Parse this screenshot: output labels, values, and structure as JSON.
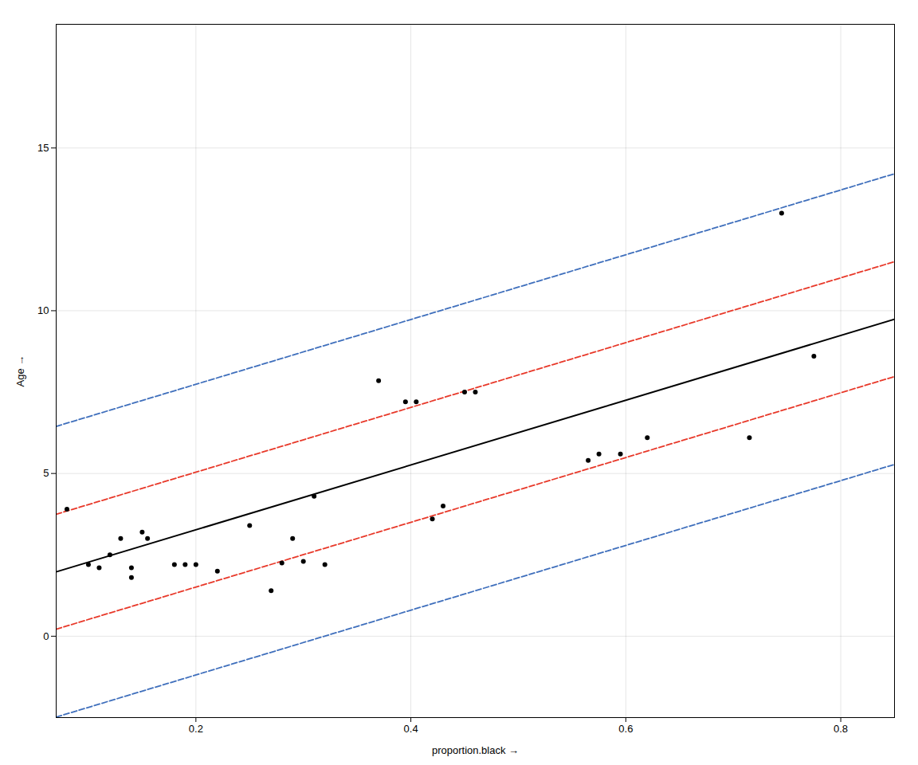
{
  "chart_data": {
    "type": "scatter",
    "xlabel": "proportion.black",
    "ylabel": "Age",
    "xlim": [
      0.07,
      0.85
    ],
    "ylim": [
      -2.5,
      18.8
    ],
    "xticks": [
      0.2,
      0.4,
      0.6,
      0.8
    ],
    "yticks": [
      0,
      5,
      10,
      15
    ],
    "grid": true,
    "color": "#000000",
    "marker": "circle",
    "x": [
      0.08,
      0.1,
      0.11,
      0.12,
      0.13,
      0.14,
      0.14,
      0.15,
      0.155,
      0.18,
      0.19,
      0.2,
      0.22,
      0.25,
      0.27,
      0.28,
      0.29,
      0.3,
      0.31,
      0.32,
      0.37,
      0.395,
      0.405,
      0.42,
      0.43,
      0.45,
      0.46,
      0.565,
      0.575,
      0.595,
      0.62,
      0.715,
      0.775,
      0.745
    ],
    "values": [
      3.9,
      2.2,
      2.1,
      2.5,
      3.0,
      1.8,
      2.1,
      3.2,
      3.0,
      2.2,
      2.2,
      2.2,
      2.0,
      3.4,
      1.4,
      2.25,
      3.0,
      2.3,
      4.3,
      2.2,
      7.85,
      7.2,
      7.2,
      3.6,
      4.0,
      7.5,
      7.5,
      5.4,
      5.6,
      5.6,
      6.1,
      6.1,
      8.6,
      13.0
    ],
    "series": [
      {
        "type": "line",
        "color": "#000000",
        "line_style": "solid",
        "x": [
          0.07,
          0.85
        ],
        "values": [
          1.9765,
          9.7375
        ]
      },
      {
        "type": "line",
        "color": "#e8392a",
        "line_style": "dashed",
        "x": [
          0.07,
          0.85
        ],
        "values": [
          3.7465,
          11.5075
        ]
      },
      {
        "type": "line",
        "color": "#e8392a",
        "line_style": "dashed",
        "x": [
          0.07,
          0.85
        ],
        "values": [
          0.2165,
          7.9775
        ]
      },
      {
        "type": "line",
        "color": "#3f6fbc",
        "line_style": "dashed",
        "x": [
          0.07,
          0.85
        ],
        "values": [
          6.4465,
          14.2075
        ]
      },
      {
        "type": "line",
        "color": "#3f6fbc",
        "line_style": "dashed",
        "x": [
          0.07,
          0.85
        ],
        "values": [
          -2.4835,
          5.2775
        ]
      }
    ]
  }
}
